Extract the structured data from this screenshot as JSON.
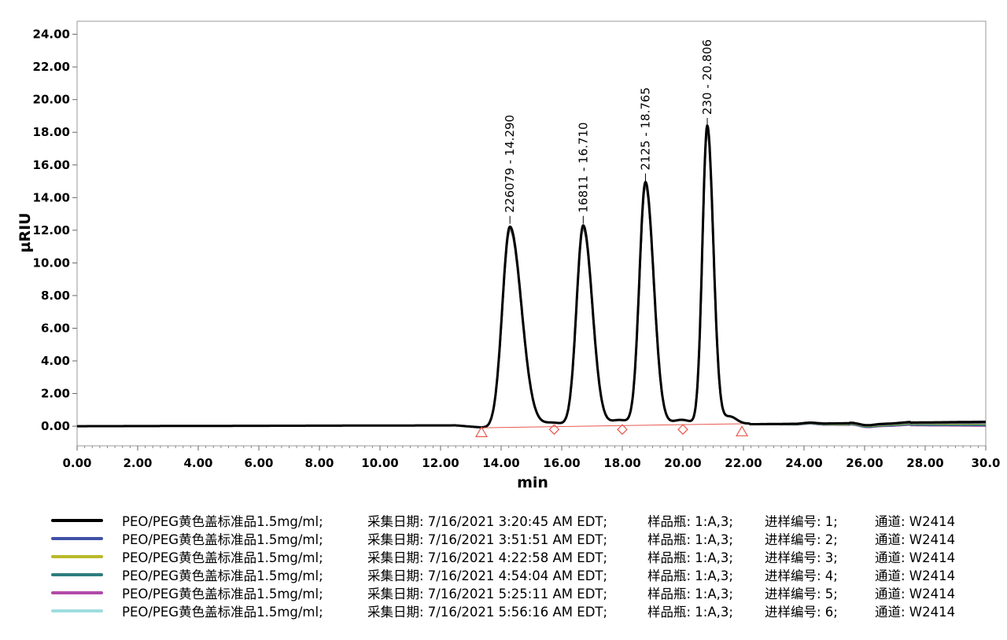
{
  "chart_data": {
    "type": "line",
    "xlabel": "min",
    "ylabel": "µRIU",
    "xlim": [
      0,
      30
    ],
    "ylim": [
      -1.2,
      24.8
    ],
    "xticks": [
      "0.00",
      "2.00",
      "4.00",
      "6.00",
      "8.00",
      "10.00",
      "12.00",
      "14.00",
      "16.00",
      "18.00",
      "20.00",
      "22.00",
      "24.00",
      "26.00",
      "28.00",
      "30.0"
    ],
    "yticks": [
      "0.00",
      "2.00",
      "4.00",
      "6.00",
      "8.00",
      "10.00",
      "12.00",
      "14.00",
      "16.00",
      "18.00",
      "20.00",
      "22.00",
      "24.00"
    ],
    "peaks": [
      {
        "label": "226079 - 14.290",
        "x": 14.29,
        "y": 12.3
      },
      {
        "label": "16811 - 16.710",
        "x": 16.71,
        "y": 12.3
      },
      {
        "label": "2125 - 18.765",
        "x": 18.765,
        "y": 14.9
      },
      {
        "label": "230 - 20.806",
        "x": 20.806,
        "y": 18.3
      }
    ],
    "integration_markers": [
      {
        "x": 13.35,
        "y": -0.35,
        "shape": "triangle"
      },
      {
        "x": 15.75,
        "y": -0.2,
        "shape": "diamond"
      },
      {
        "x": 18.0,
        "y": -0.2,
        "shape": "diamond"
      },
      {
        "x": 20.0,
        "y": -0.2,
        "shape": "diamond"
      },
      {
        "x": 21.95,
        "y": -0.3,
        "shape": "triangle"
      }
    ],
    "baseline": {
      "x_start": 13.35,
      "y_start": -0.1,
      "x_end": 21.95,
      "y_end": 0.15,
      "color": "#e8584f"
    },
    "series": [
      {
        "name": "1",
        "color": "#000000",
        "scale": 1.0,
        "tail_offset": 0.15
      },
      {
        "name": "2",
        "color": "#3f51a6",
        "scale": 0.995,
        "tail_offset": 0.1
      },
      {
        "name": "3",
        "color": "#b9b92a",
        "scale": 0.99,
        "tail_offset": 0.05
      },
      {
        "name": "4",
        "color": "#2e7d7d",
        "scale": 0.99,
        "tail_offset": -0.05
      },
      {
        "name": "5",
        "color": "#b14aa8",
        "scale": 0.985,
        "tail_offset": -0.1
      },
      {
        "name": "6",
        "color": "#9fdde0",
        "scale": 0.98,
        "tail_offset": -0.08
      }
    ]
  },
  "legend": [
    {
      "color": "#000000",
      "name": "PEO/PEG黄色盖标准品1.5mg/ml;",
      "date": "采集日期: 7/16/2021 3:20:45 AM EDT;",
      "vial": "样品瓶: 1:A,3;",
      "injection": "进样编号: 1;",
      "channel": "通道: W2414"
    },
    {
      "color": "#3f51a6",
      "name": "PEO/PEG黄色盖标准品1.5mg/ml;",
      "date": "采集日期: 7/16/2021 3:51:51 AM EDT;",
      "vial": "样品瓶: 1:A,3;",
      "injection": "进样编号: 2;",
      "channel": "通道: W2414"
    },
    {
      "color": "#b9b92a",
      "name": "PEO/PEG黄色盖标准品1.5mg/ml;",
      "date": "采集日期: 7/16/2021 4:22:58 AM EDT;",
      "vial": "样品瓶: 1:A,3;",
      "injection": "进样编号: 3;",
      "channel": "通道: W2414"
    },
    {
      "color": "#2e7d7d",
      "name": "PEO/PEG黄色盖标准品1.5mg/ml;",
      "date": "采集日期: 7/16/2021 4:54:04 AM EDT;",
      "vial": "样品瓶: 1:A,3;",
      "injection": "进样编号: 4;",
      "channel": "通道: W2414"
    },
    {
      "color": "#b14aa8",
      "name": "PEO/PEG黄色盖标准品1.5mg/ml;",
      "date": "采集日期: 7/16/2021 5:25:11 AM EDT;",
      "vial": "样品瓶: 1:A,3;",
      "injection": "进样编号: 5;",
      "channel": "通道: W2414"
    },
    {
      "color": "#9fdde0",
      "name": "PEO/PEG黄色盖标准品1.5mg/ml;",
      "date": "采集日期: 7/16/2021 5:56:16 AM EDT;",
      "vial": "样品瓶: 1:A,3;",
      "injection": "进样编号: 6;",
      "channel": "通道: W2414"
    }
  ]
}
